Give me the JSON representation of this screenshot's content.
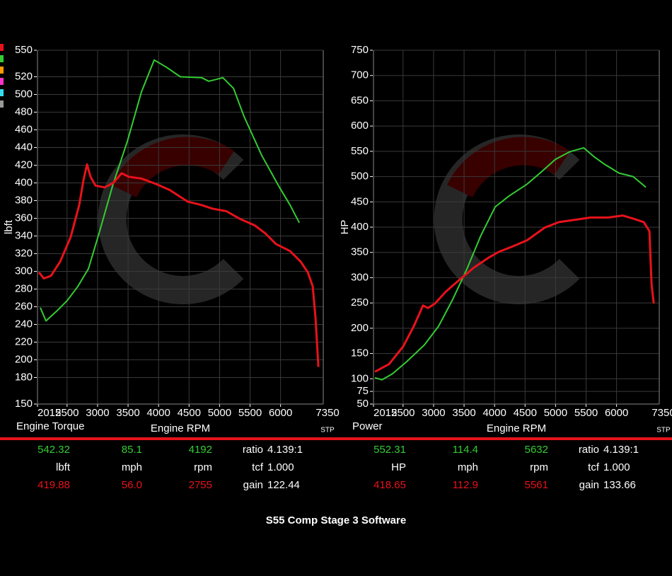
{
  "chart_data": [
    {
      "type": "line",
      "corner_label": "Engine Torque",
      "x_label": "Engine RPM",
      "y_label": "lbft",
      "x_end_label": "7350",
      "x_unit": "STP",
      "xlim": [
        2015,
        6700
      ],
      "xticks": [
        2015,
        2500,
        3000,
        3500,
        4000,
        4500,
        5000,
        5500,
        6000
      ],
      "ylim": [
        150,
        550
      ],
      "yticks": [
        150,
        180,
        200,
        220,
        240,
        260,
        280,
        300,
        320,
        340,
        360,
        380,
        400,
        420,
        440,
        460,
        480,
        500,
        520,
        550
      ],
      "grid": true,
      "series": [
        {
          "color": "#33cc33",
          "x": [
            2061,
            2154,
            2328,
            2502,
            2676,
            2850,
            3024,
            3256,
            3488,
            3720,
            3929,
            4126,
            4358,
            4706,
            4822,
            5054,
            5228,
            5402,
            5692,
            5982,
            6156,
            6307
          ],
          "values": [
            259,
            244,
            255,
            267,
            283,
            303,
            343,
            399,
            447,
            503,
            539,
            531,
            520,
            519,
            515,
            519,
            507,
            475,
            431,
            395,
            375,
            355
          ]
        },
        {
          "color": "#e8121b",
          "x": [
            2038,
            2119,
            2235,
            2386,
            2560,
            2699,
            2769,
            2827,
            2885,
            2966,
            3117,
            3256,
            3395,
            3511,
            3720,
            3952,
            4184,
            4474,
            4706,
            4880,
            5112,
            5344,
            5576,
            5750,
            5924,
            6156,
            6330,
            6446,
            6527,
            6574,
            6620
          ],
          "values": [
            299,
            292,
            295,
            311,
            339,
            375,
            403,
            421,
            407,
            397,
            395,
            400,
            411,
            407,
            405,
            399,
            392,
            379,
            375,
            371,
            368,
            359,
            352,
            343,
            331,
            323,
            311,
            299,
            283,
            247,
            192
          ]
        }
      ]
    },
    {
      "type": "line",
      "corner_label": "Power",
      "x_label": "Engine RPM",
      "y_label": "HP",
      "x_end_label": "7350",
      "x_unit": "STP",
      "xlim": [
        2015,
        6700
      ],
      "xticks": [
        2015,
        2500,
        3000,
        3500,
        4000,
        4500,
        5000,
        5500,
        6000
      ],
      "ylim": [
        50,
        750
      ],
      "yticks": [
        50,
        75,
        100,
        150,
        200,
        250,
        300,
        350,
        400,
        450,
        500,
        550,
        600,
        650,
        700,
        750
      ],
      "grid": true,
      "series": [
        {
          "color": "#33cc33",
          "x": [
            2038,
            2154,
            2328,
            2560,
            2850,
            3082,
            3314,
            3546,
            3778,
            4010,
            4242,
            4532,
            4764,
            4996,
            5228,
            5460,
            5634,
            5808,
            6040,
            6272,
            6481
          ],
          "values": [
            102,
            98,
            110,
            134,
            167,
            204,
            257,
            317,
            384,
            440,
            462,
            485,
            509,
            534,
            549,
            557,
            539,
            524,
            507,
            500,
            479
          ]
        },
        {
          "color": "#e8121b",
          "x": [
            2038,
            2270,
            2502,
            2676,
            2827,
            2908,
            3024,
            3198,
            3407,
            3662,
            3894,
            4068,
            4300,
            4532,
            4822,
            5054,
            5286,
            5576,
            5866,
            6098,
            6272,
            6446,
            6539,
            6574,
            6609
          ],
          "values": [
            114,
            129,
            164,
            204,
            245,
            240,
            249,
            272,
            294,
            320,
            339,
            351,
            362,
            374,
            399,
            410,
            414,
            419,
            419,
            423,
            417,
            410,
            392,
            287,
            249
          ]
        }
      ]
    }
  ],
  "stats": [
    {
      "rows": [
        [
          "542.32",
          "85.1",
          "4192",
          "ratio",
          "4.139:1"
        ],
        [
          "lbft",
          "mph",
          "rpm",
          "tcf",
          "1.000"
        ],
        [
          "419.88",
          "56.0",
          "2755",
          "gain",
          "122.44"
        ]
      ]
    },
    {
      "rows": [
        [
          "552.31",
          "114.4",
          "5632",
          "ratio",
          "4.139:1"
        ],
        [
          "HP",
          "mph",
          "rpm",
          "tcf",
          "1.000"
        ],
        [
          "418.65",
          "112.9",
          "5561",
          "gain",
          "133.66"
        ]
      ]
    }
  ],
  "footer": "S55 Comp Stage 3 Software"
}
